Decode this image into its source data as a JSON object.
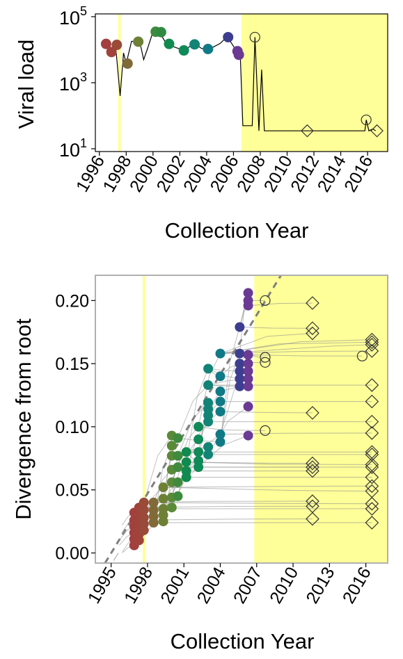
{
  "colors": {
    "highlight": "#ffff99",
    "treeLine": "#8c8c8c",
    "trend": "#7f7f7f",
    "openMarker": "#333333",
    "axis": "#000000",
    "border": "#b0b0b0"
  },
  "chart_data": [
    {
      "type": "line",
      "ylabel": "Viral load",
      "xlabel": "Collection Year",
      "xlim": [
        1995.7,
        2017.5
      ],
      "x_ticks": [
        1996,
        1998,
        2000,
        2002,
        2004,
        2006,
        2008,
        2010,
        2012,
        2014,
        2016
      ],
      "ylim": [
        10,
        100000
      ],
      "y_scale": "log",
      "y_ticks": [
        {
          "value": 10,
          "base": "10",
          "exp": "1"
        },
        {
          "value": 1000,
          "base": "10",
          "exp": "3"
        },
        {
          "value": 100000,
          "base": "10",
          "exp": "5"
        }
      ],
      "shaded_x": [
        [
          1997.4,
          1997.6
        ],
        [
          2006.6,
          2017.5
        ]
      ],
      "line": [
        [
          1996.5,
          15000
        ],
        [
          1996.9,
          8500
        ],
        [
          1997.2,
          14500
        ],
        [
          1997.55,
          400
        ],
        [
          1997.8,
          8000
        ],
        [
          1998.0,
          3800
        ],
        [
          1998.4,
          18000
        ],
        [
          1998.8,
          17500
        ],
        [
          1999.1,
          12000
        ],
        [
          1999.3,
          5000
        ],
        [
          1999.6,
          11000
        ],
        [
          2000.0,
          35000
        ],
        [
          2000.5,
          33000
        ],
        [
          2001.0,
          15000
        ],
        [
          2001.5,
          12500
        ],
        [
          2002.3,
          9500
        ],
        [
          2002.8,
          13000
        ],
        [
          2003.2,
          14500
        ],
        [
          2003.6,
          11000
        ],
        [
          2004.0,
          10000
        ],
        [
          2004.5,
          12000
        ],
        [
          2005.0,
          15500
        ],
        [
          2005.5,
          24000
        ],
        [
          2005.8,
          17000
        ],
        [
          2006.2,
          9500
        ],
        [
          2006.5,
          8000
        ],
        [
          2006.7,
          50
        ],
        [
          2007.0,
          50
        ],
        [
          2007.4,
          50
        ],
        [
          2007.6,
          24000
        ],
        [
          2007.9,
          35
        ],
        [
          2008.1,
          2500
        ],
        [
          2008.3,
          35
        ],
        [
          2011.5,
          35
        ],
        [
          2015.8,
          35
        ],
        [
          2015.9,
          75
        ],
        [
          2016.1,
          35
        ],
        [
          2016.4,
          40
        ],
        [
          2016.6,
          35
        ]
      ],
      "filled_points": [
        {
          "x": 1996.5,
          "y": 15000,
          "color": "#a33f3e"
        },
        {
          "x": 1996.9,
          "y": 8500,
          "color": "#a0443b"
        },
        {
          "x": 1997.3,
          "y": 14000,
          "color": "#9a4a38"
        },
        {
          "x": 1998.1,
          "y": 3800,
          "color": "#7f6a38"
        },
        {
          "x": 1998.9,
          "y": 17500,
          "color": "#6e8036"
        },
        {
          "x": 2000.2,
          "y": 35000,
          "color": "#3f8a3f"
        },
        {
          "x": 2000.6,
          "y": 34000,
          "color": "#2f8a42"
        },
        {
          "x": 2001.2,
          "y": 15000,
          "color": "#118a4f"
        },
        {
          "x": 2002.3,
          "y": 9500,
          "color": "#0f8a58"
        },
        {
          "x": 2003.1,
          "y": 14500,
          "color": "#118476"
        },
        {
          "x": 2004.1,
          "y": 10500,
          "color": "#107a86"
        },
        {
          "x": 2005.6,
          "y": 24000,
          "color": "#3d3e8f"
        },
        {
          "x": 2006.3,
          "y": 9000,
          "color": "#6a3a94"
        },
        {
          "x": 2006.4,
          "y": 7000,
          "color": "#6c3993"
        }
      ],
      "open_circles": [
        {
          "x": 2007.6,
          "y": 24000
        },
        {
          "x": 2015.9,
          "y": 75
        }
      ],
      "open_diamonds": [
        {
          "x": 2011.5,
          "y": 35
        },
        {
          "x": 2016.7,
          "y": 35
        }
      ]
    },
    {
      "type": "scatter",
      "ylabel": "Divergence from root",
      "xlabel": "Collection Year",
      "xlim": [
        1993.7,
        2017.8
      ],
      "x_ticks": [
        1995,
        1998,
        2001,
        2004,
        2007,
        2010,
        2013,
        2016
      ],
      "ylim": [
        -0.008,
        0.22
      ],
      "y_ticks": [
        "0.00",
        "0.05",
        "0.10",
        "0.15",
        "0.20"
      ],
      "shaded_x": [
        [
          1997.6,
          1997.85
        ],
        [
          2006.8,
          2017.8
        ]
      ],
      "trend": [
        [
          1994.5,
          -0.008
        ],
        [
          2009.0,
          0.22
        ]
      ],
      "filled_points": [
        {
          "x": 1996.9,
          "y": 0.006,
          "color": "#a33f3e"
        },
        {
          "x": 1996.9,
          "y": 0.011,
          "color": "#a33f3e"
        },
        {
          "x": 1996.9,
          "y": 0.016,
          "color": "#a33f3e"
        },
        {
          "x": 1996.9,
          "y": 0.021,
          "color": "#a33f3e"
        },
        {
          "x": 1996.9,
          "y": 0.026,
          "color": "#a33f3e"
        },
        {
          "x": 1996.9,
          "y": 0.032,
          "color": "#a33f3e"
        },
        {
          "x": 1997.3,
          "y": 0.01,
          "color": "#a0443b"
        },
        {
          "x": 1997.3,
          "y": 0.015,
          "color": "#a0443b"
        },
        {
          "x": 1997.3,
          "y": 0.02,
          "color": "#a0443b"
        },
        {
          "x": 1997.3,
          "y": 0.025,
          "color": "#a0443b"
        },
        {
          "x": 1997.3,
          "y": 0.03,
          "color": "#a0443b"
        },
        {
          "x": 1997.3,
          "y": 0.036,
          "color": "#a0443b"
        },
        {
          "x": 1997.7,
          "y": 0.018,
          "color": "#9a4a38"
        },
        {
          "x": 1997.7,
          "y": 0.023,
          "color": "#9a4a38"
        },
        {
          "x": 1997.7,
          "y": 0.028,
          "color": "#9a4a38"
        },
        {
          "x": 1997.7,
          "y": 0.034,
          "color": "#9a4a38"
        },
        {
          "x": 1997.7,
          "y": 0.04,
          "color": "#9a4a38"
        },
        {
          "x": 1998.5,
          "y": 0.024,
          "color": "#7f6a38"
        },
        {
          "x": 1998.5,
          "y": 0.029,
          "color": "#7f6a38"
        },
        {
          "x": 1998.5,
          "y": 0.034,
          "color": "#7f6a38"
        },
        {
          "x": 1998.5,
          "y": 0.04,
          "color": "#7f6a38"
        },
        {
          "x": 1999.3,
          "y": 0.025,
          "color": "#6e8036"
        },
        {
          "x": 1999.3,
          "y": 0.03,
          "color": "#6e8036"
        },
        {
          "x": 1999.3,
          "y": 0.035,
          "color": "#6e8036"
        },
        {
          "x": 1999.3,
          "y": 0.043,
          "color": "#6e8036"
        },
        {
          "x": 1999.3,
          "y": 0.052,
          "color": "#6e8036"
        },
        {
          "x": 2000.0,
          "y": 0.036,
          "color": "#5a8a38"
        },
        {
          "x": 2000.0,
          "y": 0.044,
          "color": "#5a8a38"
        },
        {
          "x": 2000.0,
          "y": 0.056,
          "color": "#5a8a38"
        },
        {
          "x": 2000.0,
          "y": 0.066,
          "color": "#5a8a38"
        },
        {
          "x": 2000.0,
          "y": 0.077,
          "color": "#5a8a38"
        },
        {
          "x": 2000.0,
          "y": 0.085,
          "color": "#5a8a38"
        },
        {
          "x": 2000.0,
          "y": 0.093,
          "color": "#5a8a38"
        },
        {
          "x": 2000.5,
          "y": 0.045,
          "color": "#3f8a3f"
        },
        {
          "x": 2000.5,
          "y": 0.056,
          "color": "#3f8a3f"
        },
        {
          "x": 2000.5,
          "y": 0.068,
          "color": "#3f8a3f"
        },
        {
          "x": 2000.5,
          "y": 0.077,
          "color": "#3f8a3f"
        },
        {
          "x": 2000.5,
          "y": 0.091,
          "color": "#3f8a3f"
        },
        {
          "x": 2001.2,
          "y": 0.06,
          "color": "#118a4f"
        },
        {
          "x": 2001.2,
          "y": 0.065,
          "color": "#118a4f"
        },
        {
          "x": 2001.2,
          "y": 0.072,
          "color": "#118a4f"
        },
        {
          "x": 2001.2,
          "y": 0.08,
          "color": "#118a4f"
        },
        {
          "x": 2002.2,
          "y": 0.068,
          "color": "#0f8a58"
        },
        {
          "x": 2002.2,
          "y": 0.073,
          "color": "#0f8a58"
        },
        {
          "x": 2002.2,
          "y": 0.08,
          "color": "#0f8a58"
        },
        {
          "x": 2002.2,
          "y": 0.09,
          "color": "#0f8a58"
        },
        {
          "x": 2002.2,
          "y": 0.1,
          "color": "#0f8a58"
        },
        {
          "x": 2003.0,
          "y": 0.078,
          "color": "#118476"
        },
        {
          "x": 2003.0,
          "y": 0.084,
          "color": "#118476"
        },
        {
          "x": 2003.0,
          "y": 0.104,
          "color": "#118476"
        },
        {
          "x": 2003.0,
          "y": 0.109,
          "color": "#118476"
        },
        {
          "x": 2003.0,
          "y": 0.114,
          "color": "#118476"
        },
        {
          "x": 2003.0,
          "y": 0.119,
          "color": "#118476"
        },
        {
          "x": 2003.0,
          "y": 0.133,
          "color": "#118476"
        },
        {
          "x": 2003.0,
          "y": 0.146,
          "color": "#118476"
        },
        {
          "x": 2004.0,
          "y": 0.088,
          "color": "#107a86"
        },
        {
          "x": 2004.0,
          "y": 0.094,
          "color": "#107a86"
        },
        {
          "x": 2004.0,
          "y": 0.112,
          "color": "#107a86"
        },
        {
          "x": 2004.0,
          "y": 0.12,
          "color": "#107a86"
        },
        {
          "x": 2004.0,
          "y": 0.128,
          "color": "#107a86"
        },
        {
          "x": 2004.0,
          "y": 0.14,
          "color": "#107a86"
        },
        {
          "x": 2004.0,
          "y": 0.158,
          "color": "#107a86"
        },
        {
          "x": 2005.6,
          "y": 0.132,
          "color": "#3d3e8f"
        },
        {
          "x": 2005.6,
          "y": 0.138,
          "color": "#3d3e8f"
        },
        {
          "x": 2005.6,
          "y": 0.144,
          "color": "#3d3e8f"
        },
        {
          "x": 2005.6,
          "y": 0.15,
          "color": "#3d3e8f"
        },
        {
          "x": 2005.6,
          "y": 0.158,
          "color": "#3d3e8f"
        },
        {
          "x": 2005.6,
          "y": 0.179,
          "color": "#3d3e8f"
        },
        {
          "x": 2006.3,
          "y": 0.093,
          "color": "#6a3a94"
        },
        {
          "x": 2006.3,
          "y": 0.116,
          "color": "#6a3a94"
        },
        {
          "x": 2006.3,
          "y": 0.132,
          "color": "#6a3a94"
        },
        {
          "x": 2006.3,
          "y": 0.138,
          "color": "#6a3a94"
        },
        {
          "x": 2006.3,
          "y": 0.144,
          "color": "#6a3a94"
        },
        {
          "x": 2006.3,
          "y": 0.15,
          "color": "#6a3a94"
        },
        {
          "x": 2006.3,
          "y": 0.157,
          "color": "#6a3a94"
        },
        {
          "x": 2006.3,
          "y": 0.196,
          "color": "#6a3a94"
        },
        {
          "x": 2006.3,
          "y": 0.2,
          "color": "#6a3a94"
        },
        {
          "x": 2006.3,
          "y": 0.206,
          "color": "#6a3a94"
        }
      ],
      "open_circles": [
        {
          "x": 2007.7,
          "y": 0.2
        },
        {
          "x": 2007.7,
          "y": 0.155
        },
        {
          "x": 2007.7,
          "y": 0.151
        },
        {
          "x": 2007.7,
          "y": 0.097
        },
        {
          "x": 2015.7,
          "y": 0.156
        }
      ],
      "open_diamonds": [
        {
          "x": 2011.6,
          "y": 0.198
        },
        {
          "x": 2011.6,
          "y": 0.178
        },
        {
          "x": 2011.6,
          "y": 0.174
        },
        {
          "x": 2011.6,
          "y": 0.111
        },
        {
          "x": 2011.6,
          "y": 0.071
        },
        {
          "x": 2011.6,
          "y": 0.068
        },
        {
          "x": 2011.6,
          "y": 0.065
        },
        {
          "x": 2011.6,
          "y": 0.041
        },
        {
          "x": 2011.6,
          "y": 0.037
        },
        {
          "x": 2011.6,
          "y": 0.027
        },
        {
          "x": 2016.5,
          "y": 0.169
        },
        {
          "x": 2016.5,
          "y": 0.167
        },
        {
          "x": 2016.5,
          "y": 0.165
        },
        {
          "x": 2016.5,
          "y": 0.16
        },
        {
          "x": 2016.5,
          "y": 0.133
        },
        {
          "x": 2016.5,
          "y": 0.12
        },
        {
          "x": 2016.5,
          "y": 0.104
        },
        {
          "x": 2016.5,
          "y": 0.095
        },
        {
          "x": 2016.5,
          "y": 0.08
        },
        {
          "x": 2016.5,
          "y": 0.078
        },
        {
          "x": 2016.5,
          "y": 0.07
        },
        {
          "x": 2016.5,
          "y": 0.068
        },
        {
          "x": 2016.5,
          "y": 0.06
        },
        {
          "x": 2016.5,
          "y": 0.053
        },
        {
          "x": 2016.5,
          "y": 0.049
        },
        {
          "x": 2016.5,
          "y": 0.039
        },
        {
          "x": 2016.5,
          "y": 0.035
        },
        {
          "x": 2016.5,
          "y": 0.024
        }
      ]
    }
  ]
}
